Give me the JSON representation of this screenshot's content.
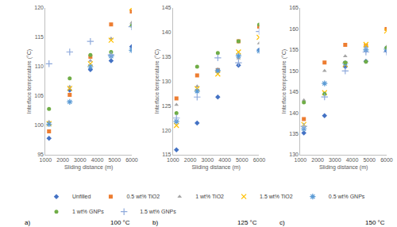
{
  "chart_data": [
    {
      "type": "scatter",
      "x_label": "Sliding distance (m)",
      "y_label": "Interface temperature (°C)",
      "annotations": [
        "a)",
        "100 °C"
      ],
      "legend": "bottom",
      "grid": false,
      "x": [
        1200,
        2400,
        3600,
        4800,
        6000
      ],
      "xlim": [
        1000,
        6000
      ],
      "xticks": [
        1000,
        2000,
        3000,
        4000,
        5000,
        6000
      ],
      "ylim": [
        95,
        120
      ],
      "yticks": [
        95,
        100,
        105,
        110,
        115,
        120
      ],
      "series": [
        {
          "name": "Unfilled",
          "color": "#4472C4",
          "marker": "diamond",
          "values": [
            97.8,
            106,
            109.5,
            111,
            113.4
          ]
        },
        {
          "name": "0.5 wt% TiO2",
          "color": "#ED7D31",
          "marker": "square",
          "values": [
            99,
            105.2,
            111.7,
            117.2,
            119.4
          ]
        },
        {
          "name": "1 wt% TiO2",
          "color": "#A5A5A5",
          "marker": "triangle",
          "values": [
            100.6,
            106.6,
            111,
            114.8,
            117.5
          ]
        },
        {
          "name": "1.5 wt% TiO2",
          "color": "#FFC000",
          "marker": "x",
          "values": [
            100.3,
            106.3,
            110.5,
            114.5,
            120
          ]
        },
        {
          "name": "0.5 wt% GNPs",
          "color": "#5B9BD5",
          "marker": "asterisk",
          "values": [
            100.2,
            104,
            110,
            111.8,
            112.8
          ]
        },
        {
          "name": "1 wt% GNPs",
          "color": "#70AD47",
          "marker": "circle",
          "values": [
            102.8,
            108,
            112,
            112.5,
            117
          ]
        },
        {
          "name": "1.5 wt% GNPs",
          "color": "#8FAADC",
          "marker": "cross",
          "values": [
            110.5,
            112.5,
            114.3,
            112,
            116.8
          ]
        }
      ]
    },
    {
      "type": "scatter",
      "x_label": "Sliding distance (m)",
      "y_label": "Interface temperature (°C)",
      "annotations": [
        "b)",
        "125 °C"
      ],
      "legend": "bottom",
      "grid": false,
      "x": [
        1200,
        2400,
        3600,
        4800,
        6000
      ],
      "xlim": [
        1000,
        6000
      ],
      "xticks": [
        1000,
        2000,
        3000,
        4000,
        5000,
        6000
      ],
      "ylim": [
        115,
        145
      ],
      "yticks": [
        115,
        120,
        125,
        130,
        135,
        140,
        145
      ],
      "series": [
        {
          "name": "Unfilled",
          "color": "#4472C4",
          "marker": "diamond",
          "values": [
            116,
            121.5,
            126.8,
            133.3,
            136.4
          ]
        },
        {
          "name": "0.5 wt% TiO2",
          "color": "#ED7D31",
          "marker": "square",
          "values": [
            126.5,
            131.2,
            132.3,
            138.2,
            141.2
          ]
        },
        {
          "name": "1 wt% TiO2",
          "color": "#A5A5A5",
          "marker": "triangle",
          "values": [
            125.2,
            129,
            132,
            134.7,
            137.8
          ]
        },
        {
          "name": "1.5 wt% TiO2",
          "color": "#FFC000",
          "marker": "x",
          "values": [
            121,
            128.5,
            131.5,
            136,
            139
          ]
        },
        {
          "name": "0.5 wt% GNPs",
          "color": "#5B9BD5",
          "marker": "asterisk",
          "values": [
            121.8,
            128,
            132.2,
            135.2,
            136.2
          ]
        },
        {
          "name": "1 wt% GNPs",
          "color": "#70AD47",
          "marker": "circle",
          "values": [
            123.5,
            133,
            135.8,
            138.2,
            141.6
          ]
        },
        {
          "name": "1.5 wt% GNPs",
          "color": "#8FAADC",
          "marker": "cross",
          "values": [
            122.5,
            126.8,
            134.8,
            133.8,
            140.2
          ]
        }
      ]
    },
    {
      "type": "scatter",
      "x_label": "Sliding distance (m)",
      "y_label": "Interface temperature (°C)",
      "annotations": [
        "c)",
        "150 °C"
      ],
      "legend": "bottom",
      "grid": false,
      "x": [
        1200,
        2400,
        3600,
        4800,
        6000
      ],
      "xlim": [
        1000,
        6000
      ],
      "xticks": [
        1000,
        2000,
        3000,
        4000,
        5000,
        6000
      ],
      "ylim": [
        130,
        165
      ],
      "yticks": [
        130,
        135,
        140,
        145,
        150,
        155,
        160,
        165
      ],
      "series": [
        {
          "name": "Unfilled",
          "color": "#4472C4",
          "marker": "diamond",
          "values": [
            135.2,
            139.3,
            151,
            152.3,
            154.8
          ]
        },
        {
          "name": "0.5 wt% TiO2",
          "color": "#ED7D31",
          "marker": "square",
          "values": [
            138.5,
            152,
            156.2,
            156,
            160
          ]
        },
        {
          "name": "1 wt% TiO2",
          "color": "#A5A5A5",
          "marker": "triangle",
          "values": [
            143,
            150,
            153.5,
            155.8,
            155.8
          ]
        },
        {
          "name": "1.5 wt% TiO2",
          "color": "#FFC000",
          "marker": "x",
          "values": [
            137.2,
            144.8,
            151.5,
            156.3,
            159.5
          ]
        },
        {
          "name": "0.5 wt% GNPs",
          "color": "#5B9BD5",
          "marker": "asterisk",
          "values": [
            136.2,
            147,
            151.8,
            155,
            155.2
          ]
        },
        {
          "name": "1 wt% GNPs",
          "color": "#70AD47",
          "marker": "circle",
          "values": [
            142.5,
            144.5,
            152,
            152.2,
            155.5
          ]
        },
        {
          "name": "1.5 wt% GNPs",
          "color": "#8FAADC",
          "marker": "cross",
          "values": [
            136.8,
            143.8,
            150,
            154.5,
            154.5
          ]
        }
      ]
    }
  ]
}
